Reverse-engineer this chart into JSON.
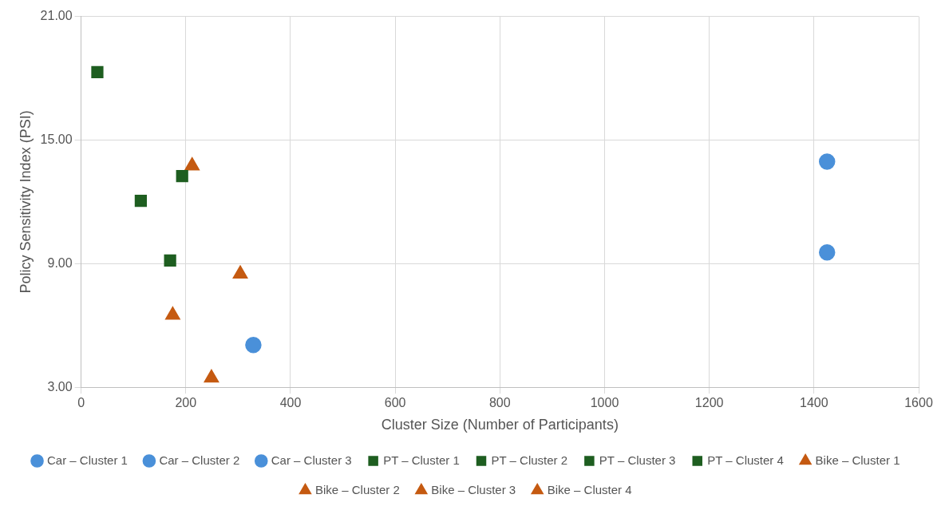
{
  "chart_data": {
    "type": "scatter",
    "xlabel": "Cluster Size (Number of Participants)",
    "ylabel": "Policy Sensitivity Index (PSI)",
    "xlim": [
      0,
      1600
    ],
    "xticks": [
      0,
      200,
      400,
      600,
      800,
      1000,
      1200,
      1400,
      1600
    ],
    "ylim": [
      3,
      21
    ],
    "yticks": [
      {
        "value": 3,
        "label": "3.00"
      },
      {
        "value": 9,
        "label": "9.00"
      },
      {
        "value": 15,
        "label": "15.00"
      },
      {
        "value": 21,
        "label": "21.00"
      }
    ],
    "grid": true,
    "legend": "bottom",
    "series": [
      {
        "name": "Car – Cluster 1",
        "color": "#4a90d9",
        "marker": "circle",
        "x": [
          1425
        ],
        "values": [
          13.95
        ]
      },
      {
        "name": "Car – Cluster 2",
        "color": "#4a90d9",
        "marker": "circle",
        "x": [
          1425
        ],
        "values": [
          9.55
        ]
      },
      {
        "name": "Car – Cluster 3",
        "color": "#4a90d9",
        "marker": "circle",
        "x": [
          329
        ],
        "values": [
          5.05
        ]
      },
      {
        "name": "PT – Cluster 1",
        "color": "#1e5e20",
        "marker": "square",
        "x": [
          193
        ],
        "values": [
          13.25
        ]
      },
      {
        "name": "PT – Cluster 2",
        "color": "#1e5e20",
        "marker": "square",
        "x": [
          170
        ],
        "values": [
          9.15
        ]
      },
      {
        "name": "PT – Cluster 3",
        "color": "#1e5e20",
        "marker": "square",
        "x": [
          114
        ],
        "values": [
          12.05
        ]
      },
      {
        "name": "PT – Cluster 4",
        "color": "#1e5e20",
        "marker": "square",
        "x": [
          31
        ],
        "values": [
          18.3
        ]
      },
      {
        "name": "Bike – Cluster 1",
        "color": "#c55a11",
        "marker": "triangle",
        "x": [
          304
        ],
        "values": [
          8.5
        ]
      },
      {
        "name": "Bike – Cluster 2",
        "color": "#c55a11",
        "marker": "triangle",
        "x": [
          249
        ],
        "values": [
          3.45
        ]
      },
      {
        "name": "Bike – Cluster 3",
        "color": "#c55a11",
        "marker": "triangle",
        "x": [
          212
        ],
        "values": [
          13.75
        ]
      },
      {
        "name": "Bike – Cluster 4",
        "color": "#c55a11",
        "marker": "triangle",
        "x": [
          175
        ],
        "values": [
          6.5
        ]
      }
    ]
  }
}
